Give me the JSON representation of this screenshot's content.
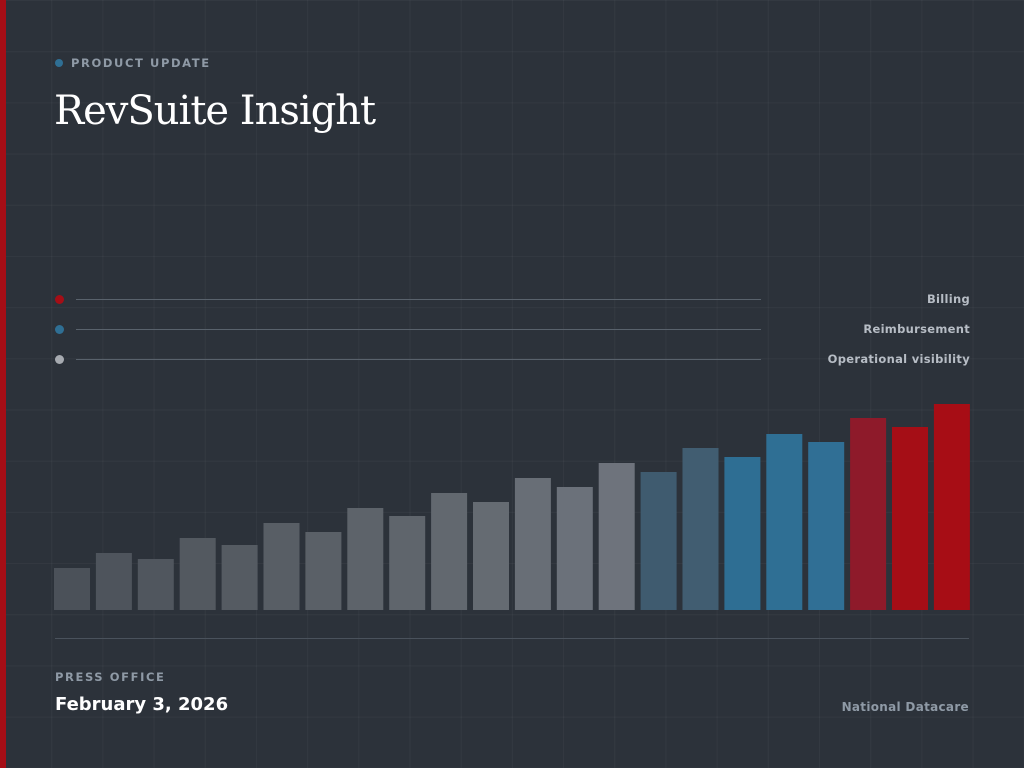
{
  "eyebrow": {
    "label": "PRODUCT UPDATE",
    "dot_color": "#2f6f94"
  },
  "title": "RevSuite Insight",
  "legend": [
    {
      "label": "Billing",
      "color": "#a50e16"
    },
    {
      "label": "Reimbursement",
      "color": "#2f6f94"
    },
    {
      "label": "Operational visibility",
      "color": "#a6aab0"
    }
  ],
  "colors": {
    "accent": "#a50e16",
    "background": "#2c323a"
  },
  "chart_data": {
    "type": "bar",
    "categories": [
      "",
      "",
      "",
      "",
      "",
      "",
      "",
      "",
      "",
      "",
      "",
      "",
      "",
      "",
      "",
      "",
      "",
      "",
      "",
      "",
      "",
      ""
    ],
    "values": [
      42,
      57,
      51,
      72,
      65,
      87,
      78,
      102,
      94,
      117,
      108,
      132,
      123,
      147,
      138,
      162,
      153,
      176,
      168,
      192,
      183,
      206
    ],
    "bar_colors": [
      "#4b5159",
      "#4e545c",
      "#50565e",
      "#535960",
      "#555b62",
      "#585e65",
      "#5a6067",
      "#5d636a",
      "#5f656c",
      "#62686f",
      "#656b72",
      "#686e76",
      "#6b717a",
      "#6e737c",
      "#3f5b6f",
      "#415d71",
      "#2e6e93",
      "#2f6f94",
      "#306f95",
      "#8e1a2a",
      "#a50e16",
      "#a70d15"
    ],
    "ylim": [
      0,
      210
    ],
    "xlabel": "",
    "ylabel": "",
    "title": "",
    "grid": false,
    "legend": "top"
  },
  "footer": {
    "press_office": "PRESS OFFICE",
    "date": "February 3, 2026",
    "organization": "National Datacare"
  }
}
